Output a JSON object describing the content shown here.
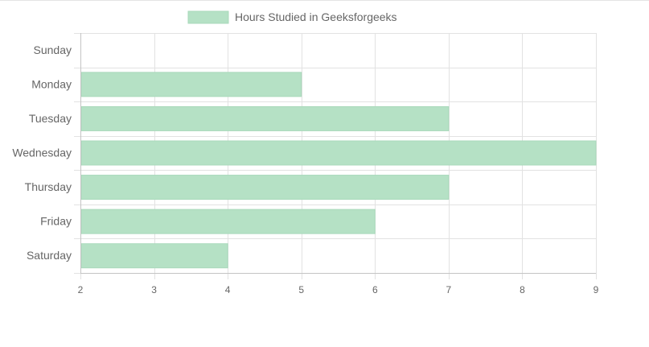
{
  "chart_data": {
    "type": "bar",
    "orientation": "horizontal",
    "categories": [
      "Sunday",
      "Monday",
      "Tuesday",
      "Wednesday",
      "Thursday",
      "Friday",
      "Saturday"
    ],
    "series": [
      {
        "name": "Hours Studied in Geeksforgeeks",
        "values": [
          null,
          5,
          7,
          9,
          7,
          6,
          4
        ],
        "color": "#b5e1c5"
      }
    ],
    "xlim": [
      2,
      9
    ],
    "xticks": [
      "2",
      "3",
      "4",
      "5",
      "6",
      "7",
      "8",
      "9"
    ],
    "grid": true,
    "legend_position": "top-center",
    "title": "",
    "xlabel": "",
    "ylabel": ""
  }
}
